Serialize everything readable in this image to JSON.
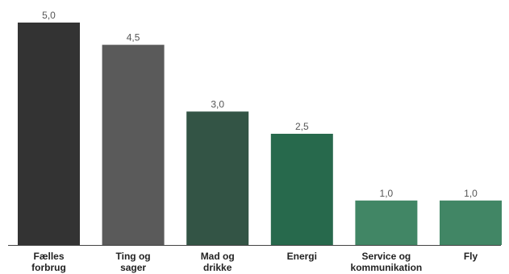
{
  "chart_data": {
    "type": "bar",
    "categories": [
      [
        "Fælles",
        "forbrug"
      ],
      [
        "Ting og",
        "sager"
      ],
      [
        "Mad og",
        "drikke"
      ],
      [
        "Energi"
      ],
      [
        "Service og",
        "kommunikation"
      ],
      [
        "Fly"
      ]
    ],
    "values": [
      5.0,
      4.5,
      3.0,
      2.5,
      1.0,
      1.0
    ],
    "value_labels": [
      "5,0",
      "4,5",
      "3,0",
      "2,5",
      "1,0",
      "1,0"
    ],
    "bar_colors": [
      "#333333",
      "#5a5a5a",
      "#335445",
      "#27694c",
      "#418665",
      "#418665"
    ],
    "ylim": [
      0,
      5
    ],
    "title": "",
    "xlabel": "",
    "ylabel": "",
    "grid": false,
    "legend": "none"
  }
}
